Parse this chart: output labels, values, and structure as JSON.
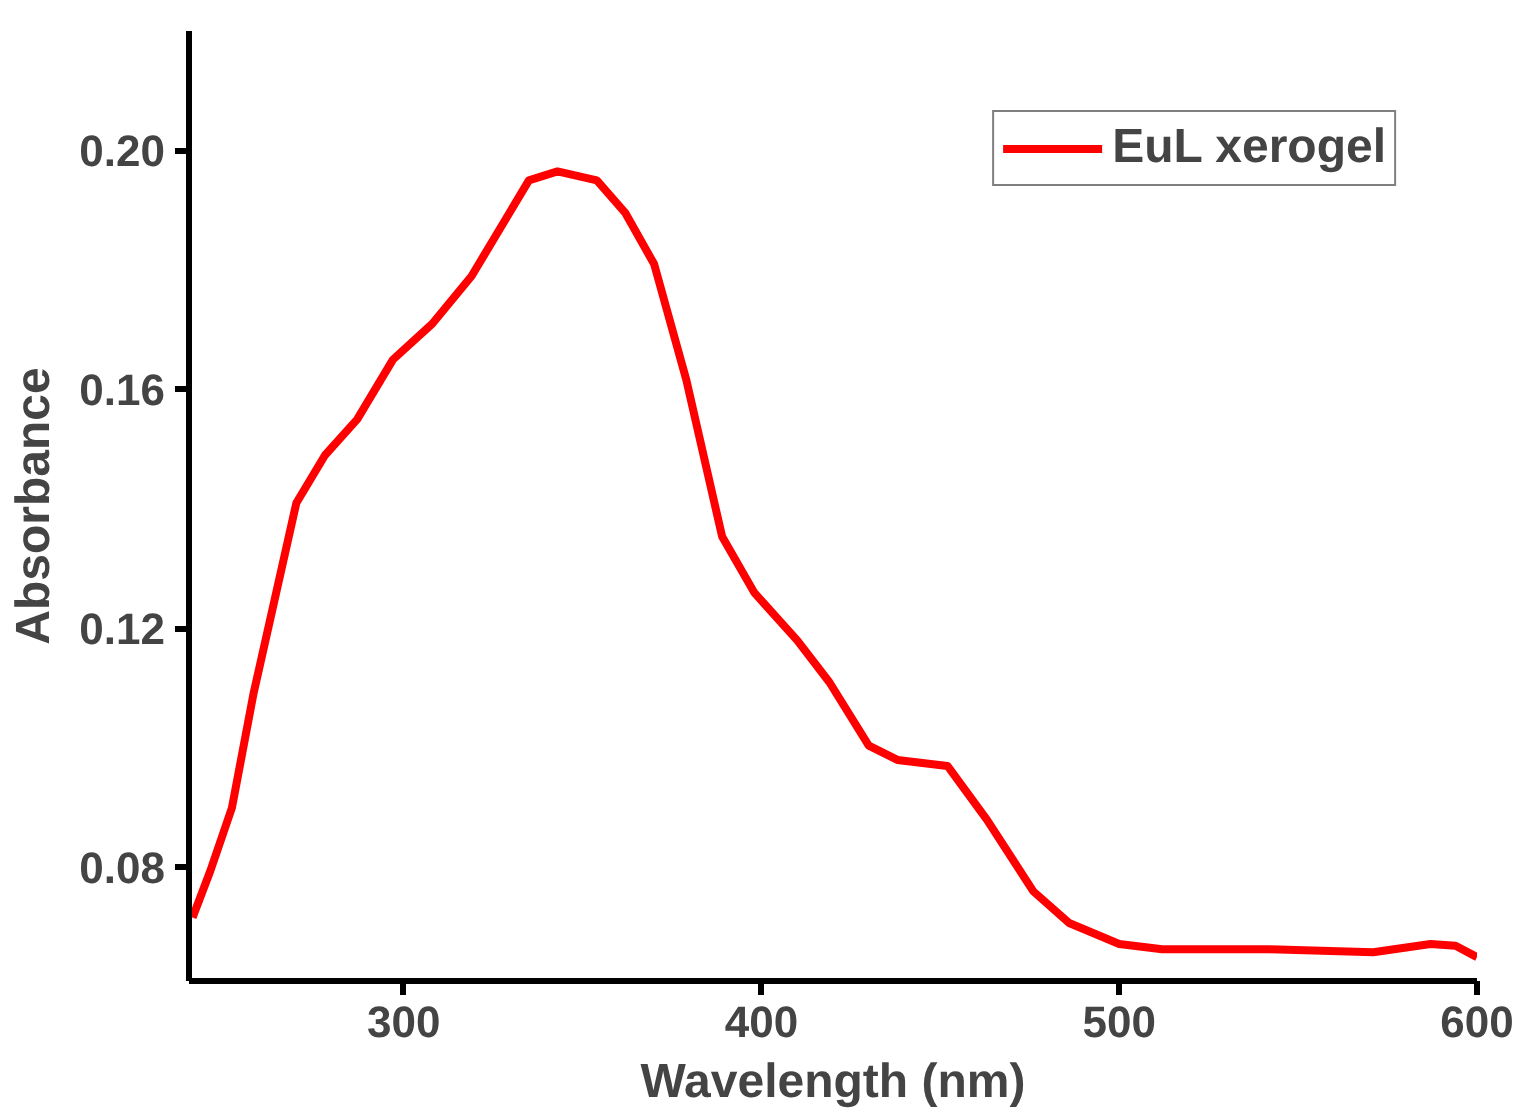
{
  "chart_data": {
    "type": "line",
    "xlabel": "Wavelength (nm)",
    "ylabel": "Absorbance",
    "xlim": [
      240,
      600
    ],
    "ylim": [
      0.061,
      0.22
    ],
    "xticks": [
      300,
      400,
      500,
      600
    ],
    "yticks": [
      {
        "value": 0.08,
        "label": "0.08"
      },
      {
        "value": 0.12,
        "label": "0.12"
      },
      {
        "value": 0.16,
        "label": "0.16"
      },
      {
        "value": 0.2,
        "label": "0.20"
      }
    ],
    "x": [
      241,
      246,
      252,
      258,
      264,
      270,
      278,
      287,
      297,
      308,
      319,
      328,
      335,
      343,
      354,
      362,
      370,
      379,
      389,
      398,
      410,
      419,
      430,
      438,
      452,
      463,
      476,
      486,
      500,
      512,
      542,
      571,
      587,
      594,
      600
    ],
    "series": [
      {
        "name": "EuL xerogel",
        "color": "#ff0000",
        "values": [
          0.0716,
          0.0795,
          0.09,
          0.109,
          0.125,
          0.141,
          0.149,
          0.155,
          0.165,
          0.171,
          0.179,
          0.188,
          0.195,
          0.1965,
          0.195,
          0.1895,
          0.181,
          0.1616,
          0.1354,
          0.126,
          0.118,
          0.111,
          0.1004,
          0.098,
          0.097,
          0.088,
          0.076,
          0.0707,
          0.0672,
          0.0663,
          0.0663,
          0.0658,
          0.0672,
          0.0669,
          0.065
        ]
      }
    ],
    "legend": "top right",
    "grid": false,
    "marker": "none",
    "line_style": "solid"
  }
}
